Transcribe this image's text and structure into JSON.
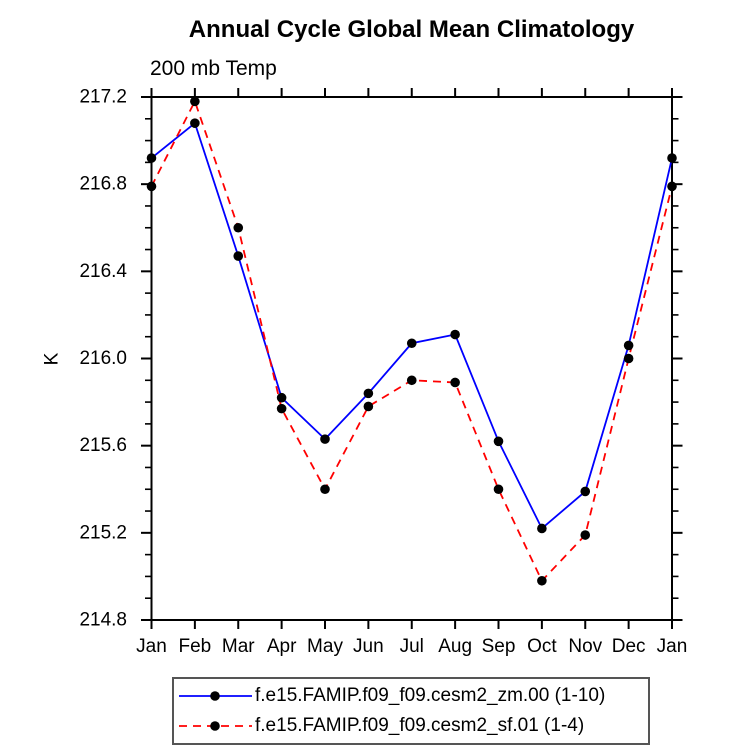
{
  "page": {
    "background": "#ffffff"
  },
  "chart_data": {
    "type": "line",
    "title": "Annual Cycle Global Mean Climatology",
    "subtitle": "200 mb Temp",
    "ylabel": "K",
    "xlabel": "",
    "categories": [
      "Jan",
      "Feb",
      "Mar",
      "Apr",
      "May",
      "Jun",
      "Jul",
      "Aug",
      "Sep",
      "Oct",
      "Nov",
      "Dec",
      "Jan"
    ],
    "ylim": [
      214.8,
      217.2
    ],
    "ytick_labels": [
      "214.8",
      "215.2",
      "215.6",
      "216.0",
      "216.4",
      "216.8",
      "217.2"
    ],
    "ytick_major_step": 0.4,
    "ytick_minor_step": 0.1,
    "grid": false,
    "legend_position": "bottom",
    "axis_color": "#000000",
    "marker": "filled-circle",
    "marker_color": "#000000",
    "series": [
      {
        "name": "f.e15.FAMIP.f09_f09.cesm2_zm.00 (1-10)",
        "color": "#0000ff",
        "line_style": "solid",
        "values": [
          216.92,
          217.08,
          216.47,
          215.82,
          215.63,
          215.84,
          216.07,
          216.11,
          215.62,
          215.22,
          215.39,
          216.06,
          216.92
        ]
      },
      {
        "name": "f.e15.FAMIP.f09_f09.cesm2_sf.01 (1-4)",
        "color": "#ff0000",
        "line_style": "dashed",
        "values": [
          216.79,
          217.18,
          216.6,
          215.77,
          215.4,
          215.78,
          215.9,
          215.89,
          215.4,
          214.98,
          215.19,
          216.0,
          216.79
        ]
      }
    ]
  }
}
